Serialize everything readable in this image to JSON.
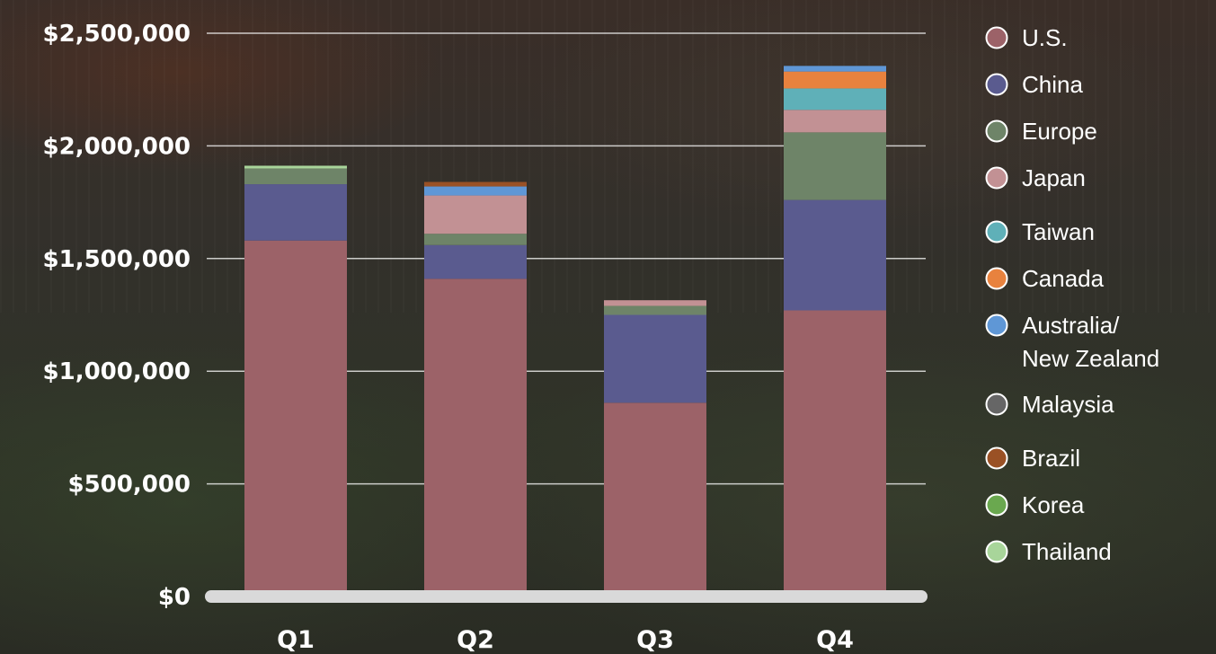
{
  "chart_data": {
    "type": "bar",
    "stacked": true,
    "categories": [
      "Q1",
      "Q2",
      "Q3",
      "Q4"
    ],
    "yticks": [
      "$0",
      "$500,000",
      "$1,000,000",
      "$1,500,000",
      "$2,000,000",
      "$2,500,000"
    ],
    "ylim": [
      0,
      2500000
    ],
    "grid": true,
    "legend_position": "right",
    "series": [
      {
        "name": "U.S.",
        "color": "#9c6268",
        "values": [
          1580000,
          1410000,
          860000,
          1270000
        ]
      },
      {
        "name": "China",
        "color": "#5a5b8f",
        "values": [
          250000,
          150000,
          390000,
          490000
        ]
      },
      {
        "name": "Europe",
        "color": "#6e8468",
        "values": [
          70000,
          50000,
          40000,
          300000
        ]
      },
      {
        "name": "Japan",
        "color": "#c29194",
        "values": [
          0,
          170000,
          25000,
          100000
        ]
      },
      {
        "name": "Taiwan",
        "color": "#5fb0b8",
        "values": [
          0,
          0,
          0,
          95000
        ]
      },
      {
        "name": "Canada",
        "color": "#e8823e",
        "values": [
          0,
          0,
          0,
          75000
        ]
      },
      {
        "name": "Australia/ New Zealand",
        "label_lines": [
          "Australia/",
          "New Zealand"
        ],
        "color": "#5f97d6",
        "values": [
          0,
          40000,
          0,
          25000
        ]
      },
      {
        "name": "Malaysia",
        "color": "#666666",
        "values": [
          0,
          0,
          0,
          0
        ]
      },
      {
        "name": "Brazil",
        "color": "#9a5125",
        "values": [
          0,
          20000,
          0,
          0
        ]
      },
      {
        "name": "Korea",
        "color": "#6aa84f",
        "values": [
          0,
          0,
          0,
          0
        ]
      },
      {
        "name": "Thailand",
        "color": "#a8d59a",
        "values": [
          12000,
          0,
          0,
          0
        ]
      }
    ]
  }
}
